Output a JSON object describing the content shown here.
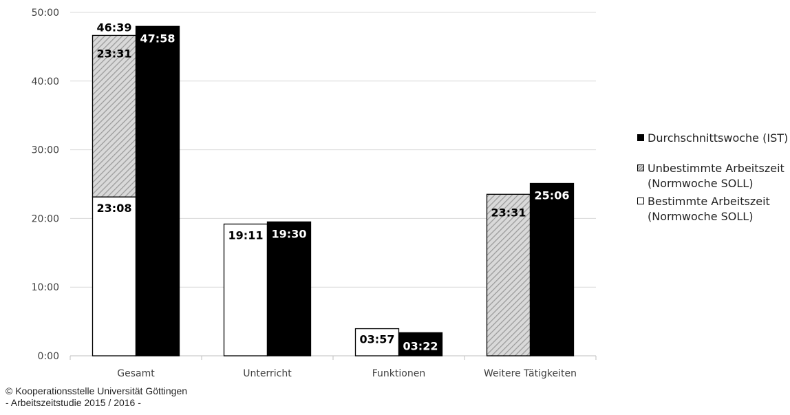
{
  "chart_data": {
    "type": "bar",
    "categories": [
      "Gesamt",
      "Unterricht",
      "Funktionen",
      "Weitere Tätigkeiten"
    ],
    "y_ticks": [
      "0:00",
      "10:00",
      "20:00",
      "30:00",
      "40:00",
      "50:00"
    ],
    "ylim_minutes": [
      0,
      3000
    ],
    "grid": true,
    "legend_position": "right",
    "series": [
      {
        "key": "best",
        "name": "Bestimmte Arbeitszeit (Normwoche SOLL)",
        "stack": "soll",
        "values_minutes": [
          1388,
          1151,
          237,
          0
        ],
        "labels": [
          "23:08",
          "19:11",
          "03:57",
          ""
        ]
      },
      {
        "key": "unb",
        "name": "Unbestimmte Arbeitszeit (Normwoche SOLL)",
        "stack": "soll",
        "values_minutes": [
          1411,
          0,
          0,
          1411
        ],
        "labels": [
          "23:31",
          "",
          "",
          "23:31"
        ]
      },
      {
        "key": "ist",
        "name": "Durchschnittswoche (IST)",
        "stack": "ist",
        "values_minutes": [
          2878,
          1170,
          202,
          1506
        ],
        "labels": [
          "47:58",
          "19:30",
          "03:22",
          "25:06"
        ]
      }
    ],
    "stack_totals": {
      "values_minutes": [
        2799
      ],
      "labels": [
        "46:39"
      ]
    },
    "colors": {
      "ist": "#000000",
      "best": "#ffffff",
      "hatch_light": "#d9d9d9",
      "hatch_dark": "#9a9a9a",
      "grid": "#d9d9d9",
      "axis": "#bfbfbf"
    }
  },
  "legend": {
    "ist": "Durchschnittswoche (IST)",
    "unb_line1": "Unbestimmte Arbeitszeit",
    "unb_line2": "(Normwoche SOLL)",
    "best_line1": "Bestimmte Arbeitszeit",
    "best_line2": "(Normwoche SOLL)"
  },
  "footer": {
    "line1": "© Kooperationsstelle Universität Göttingen",
    "line2": "- Arbeitszeitstudie 2015 / 2016 -"
  }
}
